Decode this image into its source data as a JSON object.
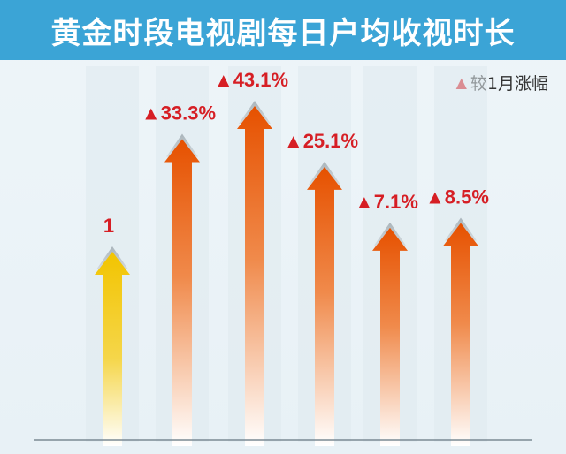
{
  "title": "黄金时段电视剧每日户均收视时长",
  "legend": {
    "marker": "▲",
    "label": "较1月涨幅"
  },
  "colors": {
    "title_bg": "#3ba4d6",
    "accent_red": "#d61e24",
    "base_bar": "#f2c400",
    "growth_bar": "#e65100"
  },
  "chart_data": {
    "type": "bar",
    "title": "黄金时段电视剧每日户均收视时长",
    "legend": [
      "较1月涨幅"
    ],
    "categories": [
      "",
      "",
      "",
      "",
      "",
      ""
    ],
    "values": [
      1,
      1.333,
      1.431,
      1.251,
      1.071,
      1.085
    ],
    "labels": [
      "1",
      "▲33.3%",
      "▲43.1%",
      "▲25.1%",
      "▲7.1%",
      "▲8.5%"
    ],
    "growth_pct": [
      null,
      33.3,
      43.1,
      25.1,
      7.1,
      8.5
    ],
    "ylim": [
      0,
      1.45
    ],
    "grid": false
  }
}
